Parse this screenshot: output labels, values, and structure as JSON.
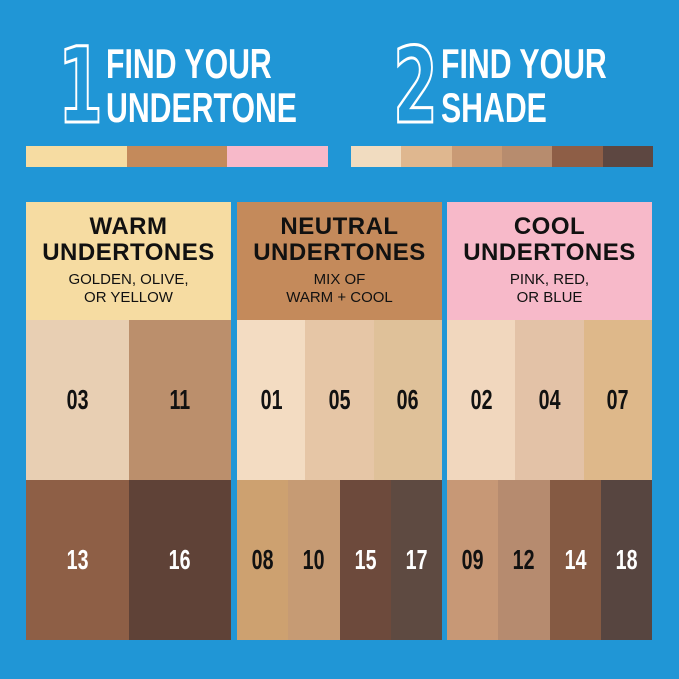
{
  "steps": [
    {
      "number": "1",
      "line1": "FIND YOUR",
      "line2": "UNDERTONE",
      "swatches": [
        "#f6dca2",
        "#c48a5b",
        "#f7b9c9"
      ]
    },
    {
      "number": "2",
      "line1": "FIND YOUR",
      "line2": "SHADE",
      "swatches": [
        "#f1dcc0",
        "#dfb78f",
        "#c99a75",
        "#b78c6e",
        "#8e5e46",
        "#5d4741"
      ]
    }
  ],
  "panels": [
    {
      "title1": "WARM",
      "title2": "UNDERTONES",
      "sub1": "GOLDEN, OLIVE,",
      "sub2": "OR YELLOW",
      "color": "#f6dca2",
      "rows": [
        [
          {
            "label": "03",
            "color": "#e8cfb3"
          },
          {
            "label": "11",
            "color": "#bb8f6c"
          }
        ],
        [
          {
            "label": "13",
            "color": "#8e5f46",
            "dark": true
          },
          {
            "label": "16",
            "color": "#5f4237",
            "dark": true
          }
        ]
      ]
    },
    {
      "title1": "NEUTRAL",
      "title2": "UNDERTONES",
      "sub1": "MIX OF",
      "sub2": "WARM + COOL",
      "color": "#c48a5b",
      "rows": [
        [
          {
            "label": "01",
            "color": "#f3dcc2"
          },
          {
            "label": "05",
            "color": "#e6c6a6"
          },
          {
            "label": "06",
            "color": "#dfc199"
          }
        ],
        [
          {
            "label": "08",
            "color": "#cda170"
          },
          {
            "label": "10",
            "color": "#c69b74"
          },
          {
            "label": "15",
            "color": "#6d4a3c",
            "dark": true
          },
          {
            "label": "17",
            "color": "#5e4a41",
            "dark": true
          }
        ]
      ]
    },
    {
      "title1": "COOL",
      "title2": "UNDERTONES",
      "sub1": "PINK, RED,",
      "sub2": "OR BLUE",
      "color": "#f7b9c9",
      "rows": [
        [
          {
            "label": "02",
            "color": "#f1d7be"
          },
          {
            "label": "04",
            "color": "#e3c2a7"
          },
          {
            "label": "07",
            "color": "#deb88a"
          }
        ],
        [
          {
            "label": "09",
            "color": "#c79876"
          },
          {
            "label": "12",
            "color": "#b68b6f"
          },
          {
            "label": "14",
            "color": "#855a43",
            "dark": true
          },
          {
            "label": "18",
            "color": "#574540",
            "dark": true
          }
        ]
      ]
    }
  ]
}
